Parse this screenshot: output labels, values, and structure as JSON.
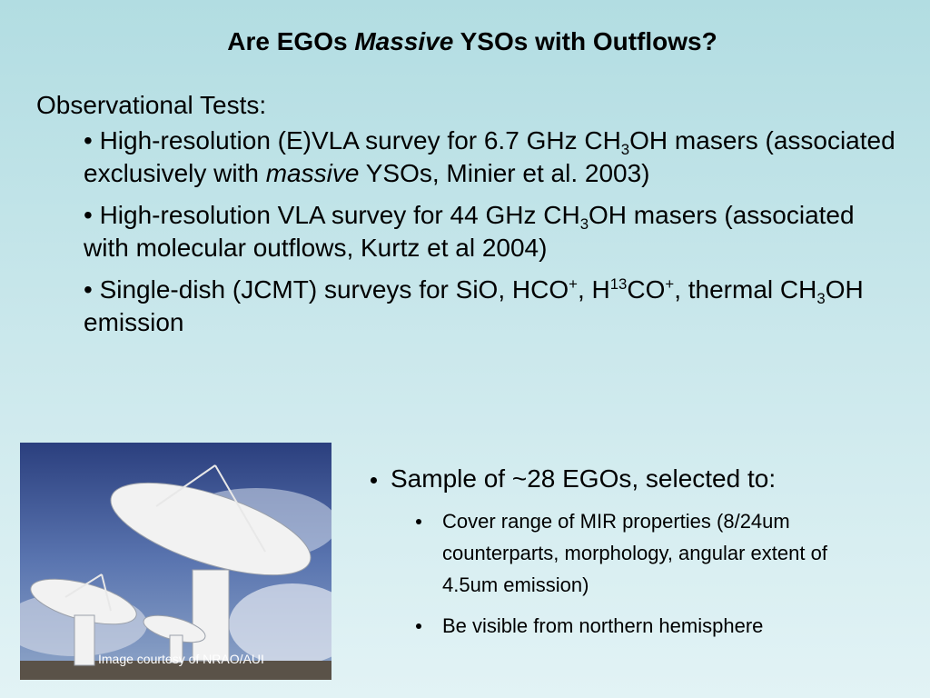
{
  "title": [
    "Are EGOs ",
    "Massive",
    " YSOs with Outflows?"
  ],
  "heading": "Observational Tests:",
  "tests": [
    [
      "• High-resolution (E)VLA survey for 6.7 GHz CH",
      "3",
      "OH masers (associated exclusively with ",
      "massive",
      " YSOs, Minier et al. 2003)"
    ],
    [
      "• High-resolution VLA survey for 44 GHz CH",
      "3",
      "OH masers (associated with molecular outflows, Kurtz et al 2004)"
    ],
    [
      "• Single-dish (JCMT) surveys for SiO, HCO",
      "+",
      ", H",
      "13",
      "CO",
      "+",
      ", thermal CH",
      "3",
      "OH emission"
    ]
  ],
  "sample": {
    "heading": "Sample of ~28 EGOs, selected to:",
    "items": [
      "Cover range of MIR properties (8/24um counterparts, morphology, angular extent of 4.5um  emission)",
      "Be visible from northern hemisphere"
    ]
  },
  "image": {
    "credit": "Image courtesy of NRAO/AUI"
  }
}
